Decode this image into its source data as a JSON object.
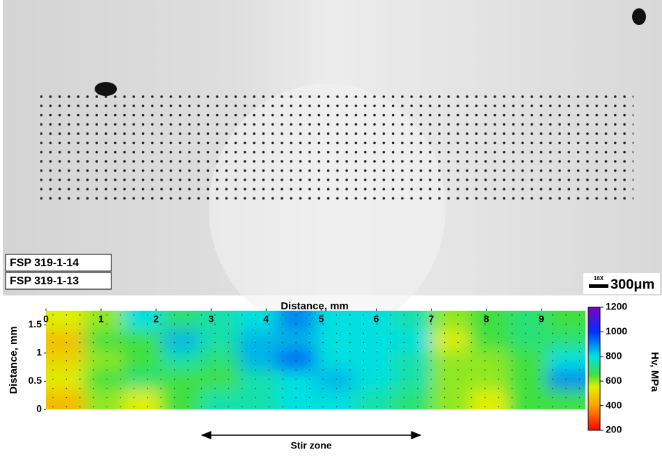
{
  "micrograph": {
    "labels": [
      "FSP 319-1-14",
      "FSP 319-1-13"
    ],
    "magnification": "16X",
    "scale": "300μm"
  },
  "chart_data": {
    "type": "heatmap",
    "x_label": "Distance, mm",
    "y_label": "Distance, mm",
    "colorbar_label": "Hv, MPa",
    "annotation": "Stir zone",
    "xlim": [
      0,
      9.8
    ],
    "ylim": [
      0,
      1.75
    ],
    "xticks": [
      0,
      1,
      2,
      3,
      4,
      5,
      6,
      7,
      8,
      9
    ],
    "yticks": [
      0,
      0.5,
      1,
      1.5
    ],
    "clim": [
      200,
      1200
    ],
    "cticks": [
      200,
      400,
      600,
      800,
      1000,
      1200
    ],
    "x": [
      0.35,
      1.05,
      1.75,
      2.45,
      3.15,
      3.85,
      4.55,
      5.25,
      5.95,
      6.65,
      7.35,
      8.05,
      8.75,
      9.45
    ],
    "y": [
      0.175,
      0.525,
      0.875,
      1.225,
      1.575
    ],
    "z": [
      [
        450,
        600,
        550,
        650,
        750,
        750,
        800,
        800,
        750,
        700,
        600,
        550,
        650,
        650
      ],
      [
        550,
        650,
        700,
        650,
        650,
        750,
        800,
        850,
        800,
        750,
        600,
        600,
        650,
        900
      ],
      [
        500,
        600,
        650,
        750,
        700,
        850,
        950,
        800,
        800,
        750,
        600,
        600,
        650,
        800
      ],
      [
        450,
        650,
        650,
        850,
        750,
        850,
        850,
        800,
        800,
        800,
        550,
        650,
        700,
        700
      ],
      [
        550,
        600,
        800,
        700,
        750,
        800,
        900,
        800,
        800,
        750,
        600,
        650,
        700,
        650
      ]
    ]
  }
}
